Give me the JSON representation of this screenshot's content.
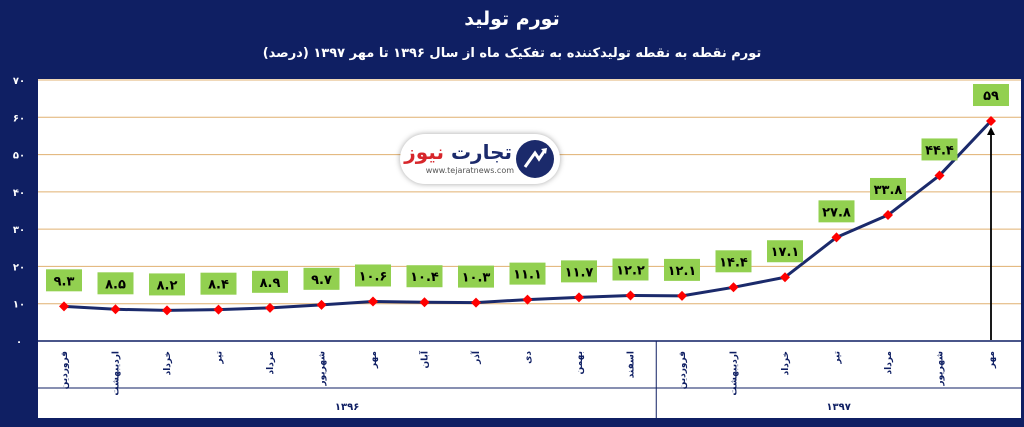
{
  "chart_data": {
    "type": "line",
    "title": "تورم تولید",
    "subtitle": "تورم نقطه به نقطه تولیدکننده به تفکیک ماه  از سال ۱۳۹۶ تا مهر ۱۳۹۷ (درصد)",
    "categories": [
      "فروردین",
      "اردیبهشت",
      "خرداد",
      "تیر",
      "مرداد",
      "شهریور",
      "مهر",
      "آبان",
      "آذر",
      "دی",
      "بهمن",
      "اسفند",
      "فروردین",
      "اردیبهشت",
      "خرداد",
      "تیر",
      "مرداد",
      "شهریور",
      "مهر"
    ],
    "years": [
      {
        "label": "۱۳۹۶",
        "count": 12
      },
      {
        "label": "۱۳۹۷",
        "count": 7
      }
    ],
    "values": [
      9.3,
      8.5,
      8.2,
      8.4,
      8.9,
      9.7,
      10.6,
      10.4,
      10.3,
      11.1,
      11.7,
      12.2,
      12.1,
      14.4,
      17.1,
      27.8,
      33.8,
      44.4,
      59
    ],
    "data_labels": [
      "۹.۳",
      "۸.۵",
      "۸.۲",
      "۸.۴",
      "۸.۹",
      "۹.۷",
      "۱۰.۶",
      "۱۰.۴",
      "۱۰.۳",
      "۱۱.۱",
      "۱۱.۷",
      "۱۲.۲",
      "۱۲.۱",
      "۱۴.۴",
      "۱۷.۱",
      "۲۷.۸",
      "۳۳.۸",
      "۴۴.۴",
      "۵۹"
    ],
    "yticks": [
      "۰",
      "۱۰",
      "۲۰",
      "۳۰",
      "۴۰",
      "۵۰",
      "۶۰",
      "۷۰"
    ],
    "ylim": [
      0,
      70
    ],
    "grid": true,
    "colors": {
      "background": "#0f1f63",
      "line": "#1b2a6b",
      "marker": "#ff0000",
      "label_fill": "#92d050",
      "grid": "#e0b070",
      "text": "#ffffff"
    }
  },
  "logo": {
    "name_main": "تجارت",
    "name_accent": "نیوز",
    "url": "www.tejaratnews.com"
  }
}
